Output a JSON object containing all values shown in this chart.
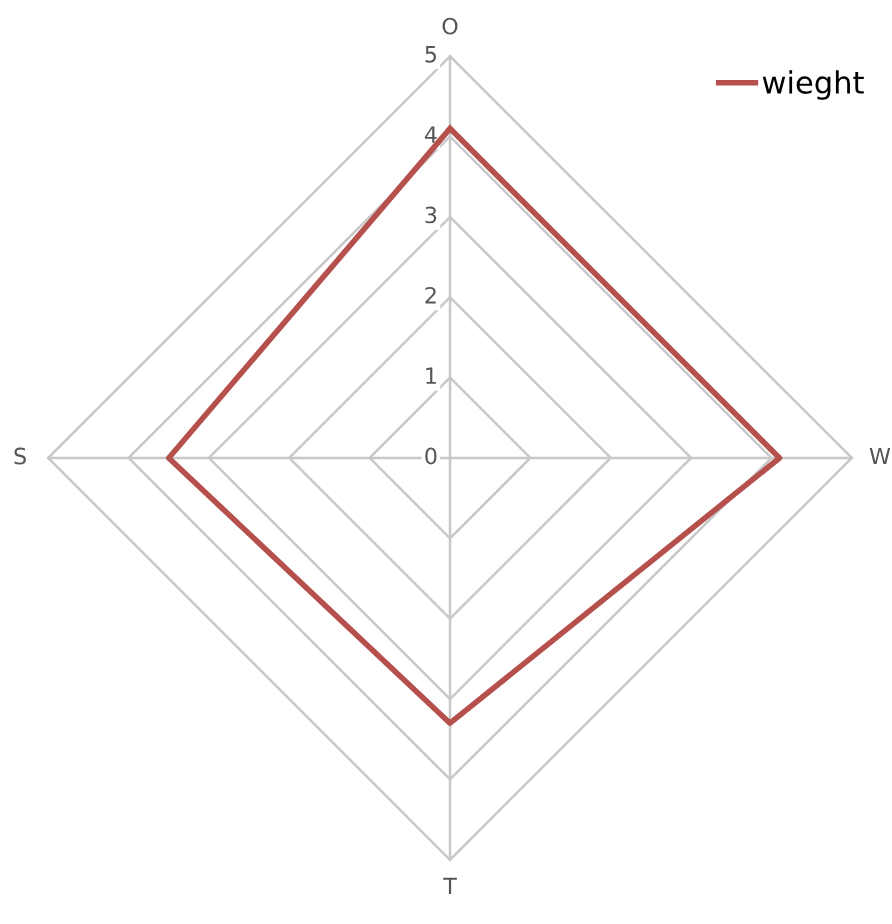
{
  "chart_data": {
    "type": "radar",
    "categories": [
      "O",
      "W",
      "T",
      "S"
    ],
    "series": [
      {
        "name": "wieght",
        "color": "#b5504c",
        "values": [
          4.1,
          4.1,
          3.3,
          3.5
        ]
      }
    ],
    "ylim": [
      0,
      5
    ],
    "yticks": [
      0,
      1,
      2,
      3,
      4,
      5
    ],
    "grid": true,
    "legend": "top right"
  }
}
